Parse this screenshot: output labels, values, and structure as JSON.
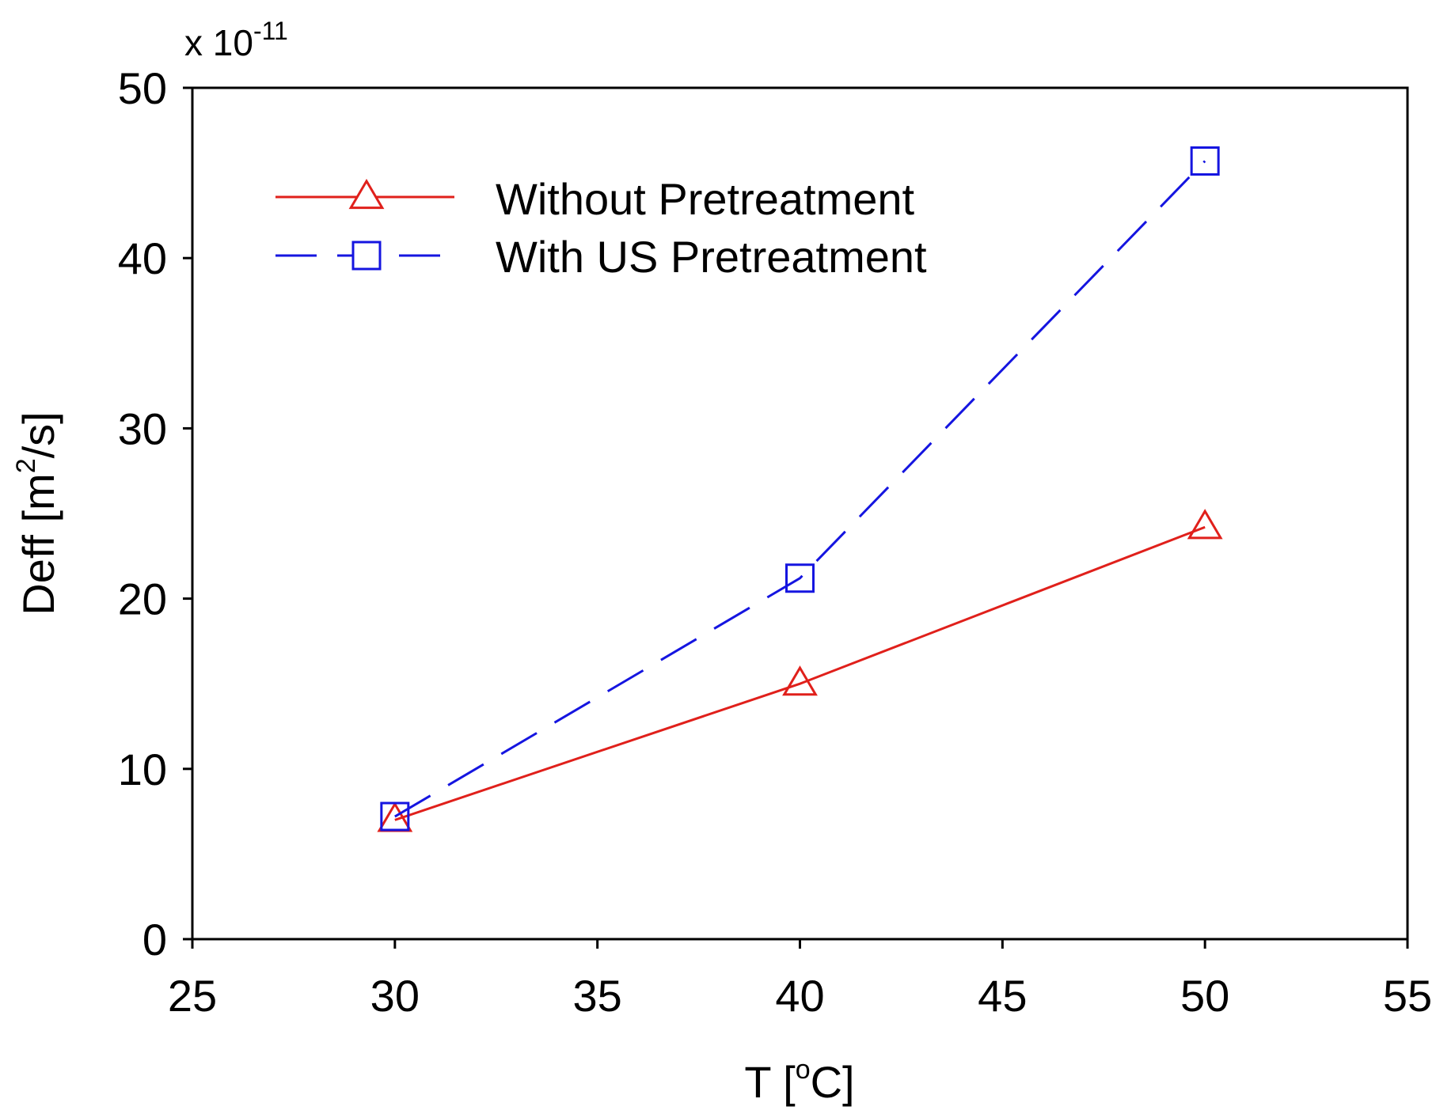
{
  "chart_data": {
    "type": "line",
    "title": "",
    "scale_factor": {
      "prefix": "x 10",
      "exponent": "-11"
    },
    "xlabel": {
      "main": "T [",
      "sup": "o",
      "rest": "C]"
    },
    "ylabel": {
      "main": "Deff [m",
      "sup": "2",
      "rest": "/s]"
    },
    "xlim": [
      25,
      55
    ],
    "ylim": [
      0,
      50
    ],
    "xticks": [
      25,
      30,
      35,
      40,
      45,
      50,
      55
    ],
    "yticks": [
      0,
      10,
      20,
      30,
      40,
      50
    ],
    "x": [
      30,
      40,
      50
    ],
    "series": [
      {
        "name": "Without Pretreatment",
        "values": [
          7.0,
          15.0,
          24.2
        ],
        "color": "#e0201b",
        "marker": "triangle",
        "line": "solid"
      },
      {
        "name": "With US Pretreatment",
        "values": [
          7.2,
          21.2,
          45.7
        ],
        "color": "#1515e0",
        "marker": "square",
        "line": "dashed"
      }
    ],
    "legend_position": "top-left",
    "grid": false
  }
}
